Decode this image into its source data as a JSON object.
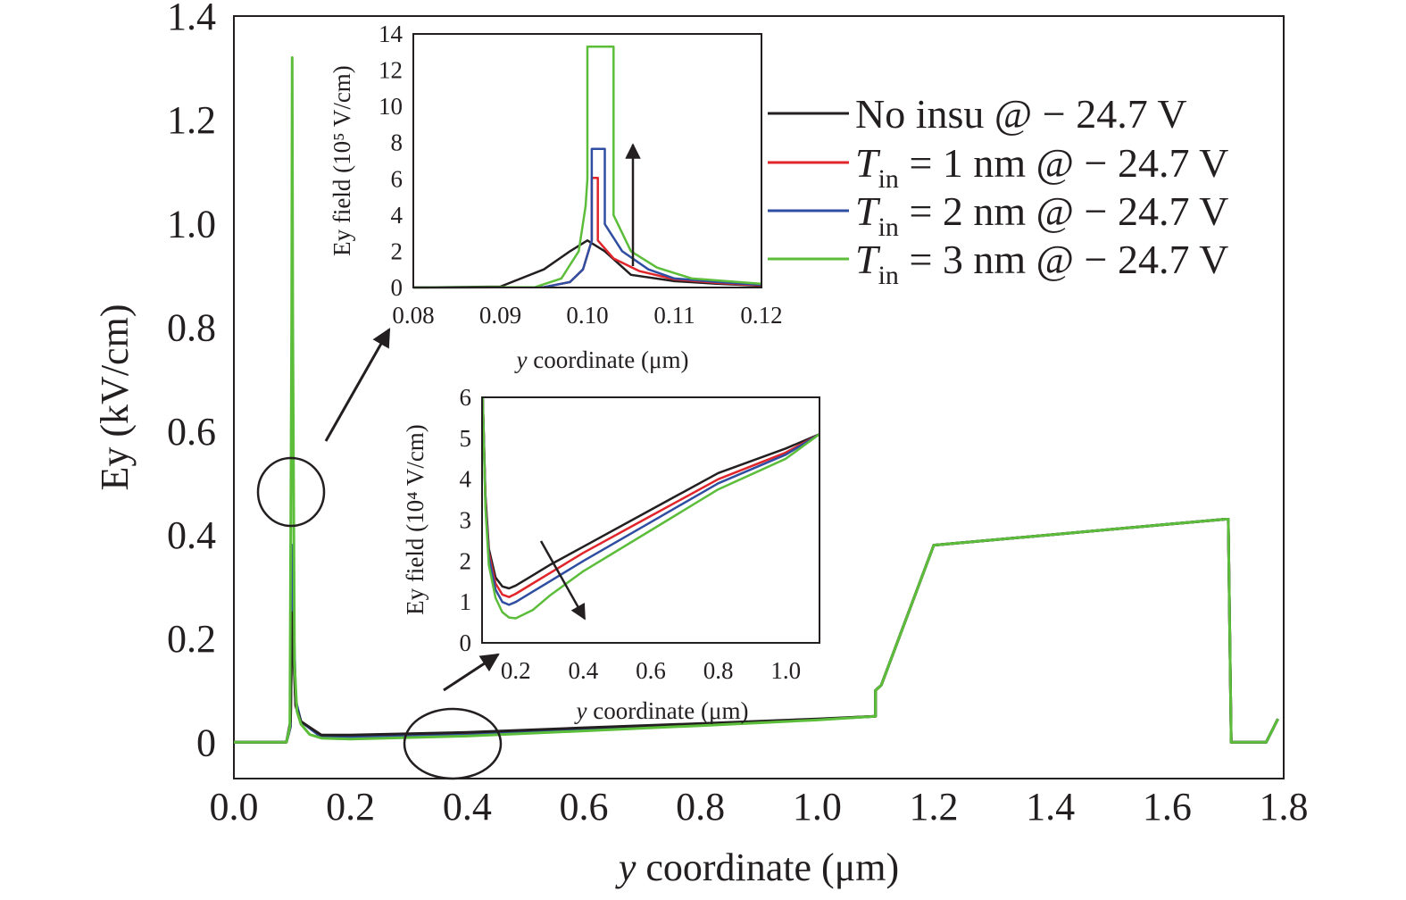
{
  "chart_data": [
    {
      "type": "line",
      "xlabel_italic": "y",
      "xlabel_rest": " coordinate (μm)",
      "ylabel": "Ey (kV/cm)",
      "xlim": [
        0.0,
        1.8
      ],
      "ylim": [
        -0.07,
        1.4
      ],
      "x_ticks": [
        "0.0",
        "0.2",
        "0.4",
        "0.6",
        "0.8",
        "1.0",
        "1.2",
        "1.4",
        "1.6",
        "1.8"
      ],
      "y_ticks": [
        "0",
        "0.2",
        "0.4",
        "0.6",
        "0.8",
        "1.0",
        "1.2",
        "1.4"
      ],
      "legend_position": "right",
      "legend": [
        {
          "text": "No insu @ − 24.7 V",
          "color": "#231f20",
          "parts": [
            {
              "t": "No insu @ − 24.7 V",
              "s": "n"
            }
          ]
        },
        {
          "text": "Tin = 1 nm @ − 24.7 V",
          "color": "#e0262b",
          "parts": [
            {
              "t": "T",
              "s": "i"
            },
            {
              "t": "in",
              "s": "sub"
            },
            {
              "t": " = 1 nm @ − 24.7 V",
              "s": "n"
            }
          ]
        },
        {
          "text": "Tin = 2 nm @ − 24.7 V",
          "color": "#2f4ea1",
          "parts": [
            {
              "t": "T",
              "s": "i"
            },
            {
              "t": "in",
              "s": "sub"
            },
            {
              "t": " = 2 nm @ − 24.7 V",
              "s": "n"
            }
          ]
        },
        {
          "text": "Tin = 3 nm @ − 24.7 V",
          "color": "#5bbd3a",
          "parts": [
            {
              "t": "T",
              "s": "i"
            },
            {
              "t": "in",
              "s": "sub"
            },
            {
              "t": " = 3 nm @ − 24.7 V",
              "s": "n"
            }
          ]
        }
      ],
      "series": [
        {
          "color": "#e0262b",
          "x": [
            0,
            0.09,
            0.097,
            0.1,
            0.102,
            0.106,
            0.115,
            0.15,
            0.2,
            0.4,
            0.6,
            0.8,
            1.0,
            1.1,
            1.1,
            1.11,
            1.2,
            1.4,
            1.6,
            1.7,
            1.705,
            1.71,
            1.74,
            1.76,
            1.77,
            1.79
          ],
          "y": [
            0,
            0,
            0.03,
            0.3,
            0.2,
            0.07,
            0.04,
            0.012,
            0.011,
            0.016,
            0.025,
            0.034,
            0.044,
            0.05,
            0.1,
            0.11,
            0.38,
            0.4,
            0.42,
            0.43,
            0.43,
            0,
            0,
            0,
            0,
            0.045
          ]
        },
        {
          "color": "#2f4ea1",
          "x": [
            0,
            0.09,
            0.097,
            0.1,
            0.102,
            0.106,
            0.115,
            0.15,
            0.2,
            0.4,
            0.6,
            0.8,
            1.0,
            1.1,
            1.1,
            1.11,
            1.2,
            1.4,
            1.6,
            1.7,
            1.705,
            1.71,
            1.74,
            1.76,
            1.77,
            1.79
          ],
          "y": [
            0,
            0,
            0.03,
            0.38,
            0.25,
            0.08,
            0.04,
            0.01,
            0.009,
            0.014,
            0.024,
            0.034,
            0.044,
            0.05,
            0.1,
            0.11,
            0.38,
            0.4,
            0.42,
            0.43,
            0.43,
            0,
            0,
            0,
            0,
            0.045
          ]
        },
        {
          "color": "#231f20",
          "x": [
            0,
            0.09,
            0.097,
            0.1,
            0.102,
            0.106,
            0.115,
            0.15,
            0.2,
            0.4,
            0.6,
            0.8,
            1.0,
            1.1,
            1.1,
            1.11,
            1.2,
            1.4,
            1.6,
            1.7,
            1.705,
            1.71,
            1.74,
            1.76,
            1.77,
            1.79
          ],
          "y": [
            0,
            0,
            0.04,
            0.25,
            0.18,
            0.07,
            0.04,
            0.014,
            0.014,
            0.019,
            0.028,
            0.036,
            0.045,
            0.05,
            0.1,
            0.11,
            0.38,
            0.4,
            0.42,
            0.43,
            0.43,
            0,
            0,
            0,
            0,
            0.045
          ]
        },
        {
          "color": "#5bbd3a",
          "x": [
            0,
            0.09,
            0.096,
            0.099,
            0.1,
            0.101,
            0.104,
            0.108,
            0.115,
            0.13,
            0.15,
            0.2,
            0.4,
            0.6,
            0.8,
            1.0,
            1.1,
            1.1,
            1.11,
            1.2,
            1.4,
            1.6,
            1.7,
            1.705,
            1.71,
            1.74,
            1.76,
            1.77,
            1.79
          ],
          "y": [
            0,
            0,
            0.03,
            0.8,
            1.32,
            0.8,
            0.15,
            0.06,
            0.035,
            0.015,
            0.008,
            0.006,
            0.012,
            0.022,
            0.032,
            0.043,
            0.05,
            0.1,
            0.11,
            0.38,
            0.4,
            0.42,
            0.43,
            0.43,
            0,
            0,
            0,
            0,
            0.045
          ]
        }
      ]
    },
    {
      "type": "line",
      "xlabel_italic": "y",
      "xlabel_rest": " coordinate (μm)",
      "ylabel": "Ey field (10⁵ V/cm)",
      "xlim": [
        0.08,
        0.12
      ],
      "ylim": [
        0,
        14
      ],
      "x_ticks": [
        "0.08",
        "0.09",
        "0.10",
        "0.11",
        "0.12"
      ],
      "y_ticks": [
        "0",
        "2",
        "4",
        "6",
        "8",
        "10",
        "12",
        "14"
      ],
      "series": [
        {
          "color": "#231f20",
          "x": [
            0.08,
            0.09,
            0.095,
            0.098,
            0.1,
            0.102,
            0.105,
            0.11,
            0.115,
            0.12
          ],
          "y": [
            0,
            0.05,
            1.0,
            2.0,
            2.6,
            2.0,
            0.7,
            0.35,
            0.2,
            0.1
          ]
        },
        {
          "color": "#e0262b",
          "x": [
            0.08,
            0.095,
            0.098,
            0.0995,
            0.1,
            0.1005,
            0.1005,
            0.1012,
            0.1012,
            0.103,
            0.106,
            0.11,
            0.115,
            0.12
          ],
          "y": [
            0,
            0.02,
            0.3,
            1.0,
            1.8,
            2.6,
            6.05,
            6.05,
            2.6,
            1.6,
            0.9,
            0.45,
            0.25,
            0.12
          ]
        },
        {
          "color": "#2f4ea1",
          "x": [
            0.08,
            0.095,
            0.098,
            0.0995,
            0.1,
            0.1005,
            0.1005,
            0.102,
            0.102,
            0.104,
            0.107,
            0.11,
            0.115,
            0.12
          ],
          "y": [
            0,
            0.02,
            0.3,
            1.0,
            1.8,
            2.6,
            7.65,
            7.65,
            3.5,
            2.0,
            1.0,
            0.5,
            0.3,
            0.15
          ]
        },
        {
          "color": "#5bbd3a",
          "x": [
            0.08,
            0.094,
            0.097,
            0.099,
            0.0998,
            0.1,
            0.1,
            0.103,
            0.103,
            0.105,
            0.108,
            0.112,
            0.12
          ],
          "y": [
            0,
            0.02,
            0.5,
            2.0,
            4.5,
            6.0,
            13.3,
            13.3,
            4.0,
            2.0,
            1.1,
            0.5,
            0.2
          ]
        }
      ]
    },
    {
      "type": "line",
      "xlabel_italic": "y",
      "xlabel_rest": " coordinate (μm)",
      "ylabel": "Ey field (10⁴ V/cm)",
      "xlim": [
        0.1,
        1.1
      ],
      "ylim": [
        0,
        6
      ],
      "x_ticks": [
        "0.2",
        "0.4",
        "0.6",
        "0.8",
        "1.0"
      ],
      "y_ticks": [
        "0",
        "1",
        "2",
        "3",
        "4",
        "5",
        "6"
      ],
      "series": [
        {
          "color": "#231f20",
          "x": [
            0.102,
            0.11,
            0.12,
            0.14,
            0.16,
            0.18,
            0.2,
            0.25,
            0.3,
            0.4,
            0.6,
            0.8,
            1.0,
            1.1
          ],
          "y": [
            6,
            3.6,
            2.3,
            1.6,
            1.38,
            1.33,
            1.4,
            1.65,
            1.9,
            2.35,
            3.25,
            4.15,
            4.75,
            5.1
          ]
        },
        {
          "color": "#e0262b",
          "x": [
            0.102,
            0.11,
            0.12,
            0.14,
            0.16,
            0.18,
            0.2,
            0.25,
            0.3,
            0.4,
            0.6,
            0.8,
            1.0,
            1.1
          ],
          "y": [
            6,
            3.5,
            2.2,
            1.45,
            1.18,
            1.12,
            1.2,
            1.45,
            1.7,
            2.2,
            3.1,
            4.0,
            4.65,
            5.1
          ]
        },
        {
          "color": "#2f4ea1",
          "x": [
            0.102,
            0.11,
            0.12,
            0.14,
            0.16,
            0.18,
            0.2,
            0.25,
            0.3,
            0.4,
            0.6,
            0.8,
            1.0,
            1.1
          ],
          "y": [
            6,
            3.4,
            2.1,
            1.3,
            1.0,
            0.93,
            1.0,
            1.25,
            1.5,
            2.0,
            2.95,
            3.9,
            4.6,
            5.1
          ]
        },
        {
          "color": "#5bbd3a",
          "x": [
            0.102,
            0.11,
            0.12,
            0.14,
            0.16,
            0.18,
            0.2,
            0.25,
            0.3,
            0.4,
            0.6,
            0.8,
            1.0,
            1.1
          ],
          "y": [
            6,
            3.3,
            1.9,
            1.1,
            0.75,
            0.62,
            0.6,
            0.8,
            1.15,
            1.75,
            2.75,
            3.75,
            4.5,
            5.1
          ]
        }
      ]
    }
  ]
}
